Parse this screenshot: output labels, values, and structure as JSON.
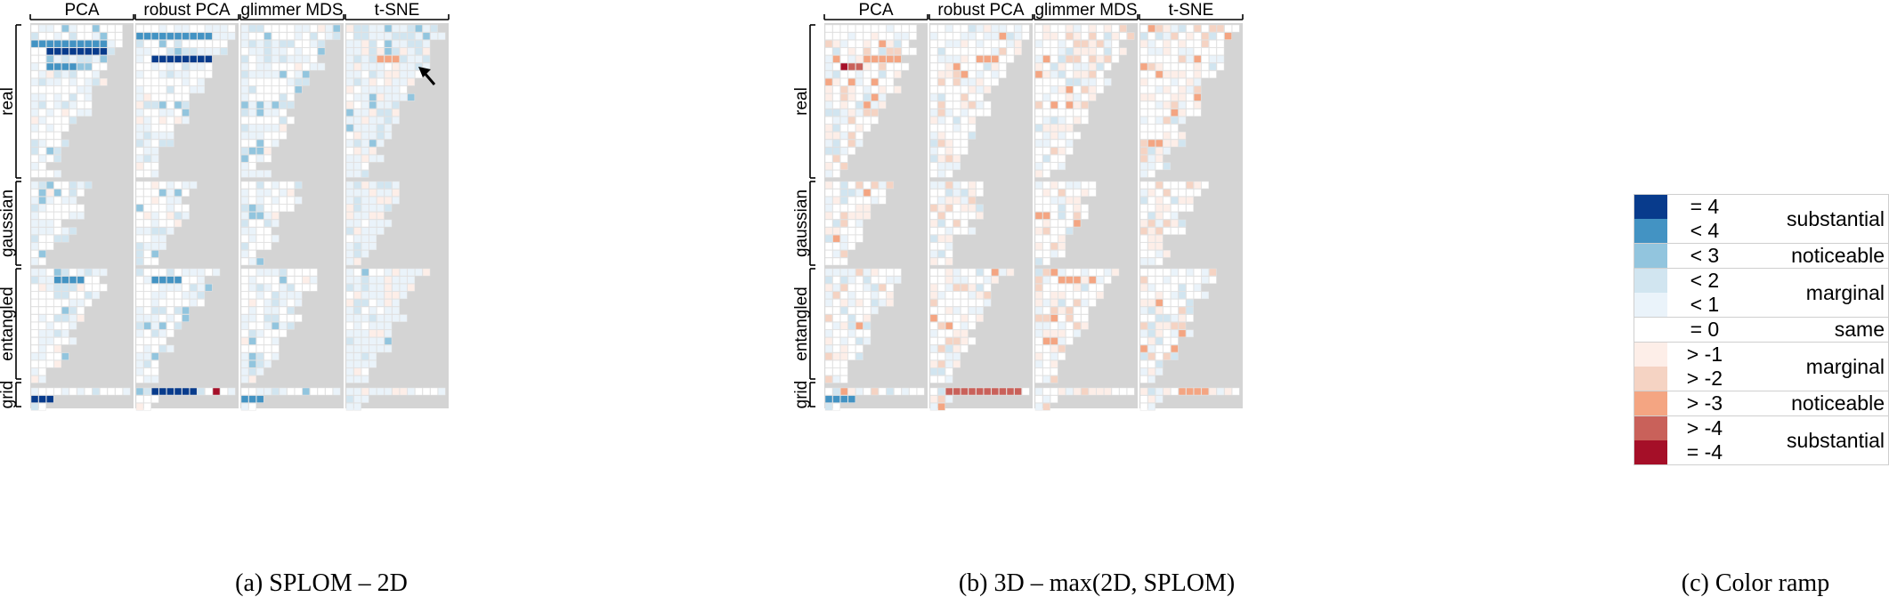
{
  "panels": [
    {
      "caption": "(a)  SPLOM – 2D",
      "columns": [
        "PCA",
        "robust PCA",
        "glimmer MDS",
        "t-SNE"
      ],
      "rows": [
        "real",
        "gaussian",
        "entangled",
        "grid"
      ],
      "arrow_annotation": true
    },
    {
      "caption": "(b)  3D – max(2D, SPLOM)",
      "columns": [
        "PCA",
        "robust PCA",
        "glimmer MDS",
        "t-SNE"
      ],
      "rows": [
        "real",
        "gaussian",
        "entangled",
        "grid"
      ],
      "arrow_annotation": false
    }
  ],
  "legend": {
    "caption": "(c)  Color ramp",
    "entries": [
      {
        "comparison": "= 4",
        "color": "#083b8c",
        "group": "substantial"
      },
      {
        "comparison": "< 4",
        "color": "#4393c3",
        "group": "substantial"
      },
      {
        "comparison": "< 3",
        "color": "#92c5de",
        "group": "noticeable"
      },
      {
        "comparison": "< 2",
        "color": "#d1e5f0",
        "group": "marginal"
      },
      {
        "comparison": "< 1",
        "color": "#eaf3fa",
        "group": "marginal"
      },
      {
        "comparison": "= 0",
        "color": "#ffffff",
        "group": "same"
      },
      {
        "comparison": "> -1",
        "color": "#fdeee8",
        "group": "marginal"
      },
      {
        "comparison": "> -2",
        "color": "#f5d3c3",
        "group": "marginal"
      },
      {
        "comparison": "> -3",
        "color": "#f4a582",
        "group": "noticeable"
      },
      {
        "comparison": "> -4",
        "color": "#c9615a",
        "group": "substantial"
      },
      {
        "comparison": "= -4",
        "color": "#a50f28",
        "group": "substantial"
      }
    ],
    "groups": [
      {
        "label": "substantial",
        "span": 2
      },
      {
        "label": "noticeable",
        "span": 1
      },
      {
        "label": "marginal",
        "span": 2
      },
      {
        "label": "same",
        "span": 1
      },
      {
        "label": "marginal",
        "span": 2
      },
      {
        "label": "noticeable",
        "span": 1
      },
      {
        "label": "substantial",
        "span": 2
      }
    ]
  },
  "chart_data": [
    {
      "type": "heatmap",
      "title": "",
      "caption": "(a)  SPLOM – 2D",
      "columns": [
        "PCA",
        "robust PCA",
        "glimmer MDS",
        "t-SNE"
      ],
      "row_groups": [
        "real",
        "gaussian",
        "entangled",
        "grid"
      ],
      "value_scale": [
        -4,
        4
      ],
      "cell_layout": "lower-triangular matrix per dataset; grey = not applicable",
      "highlights": [
        {
          "column": "PCA",
          "group": "real",
          "note": "block of = 4 cells in rows 3-4"
        },
        {
          "column": "robust PCA",
          "group": "real",
          "note": "row of = 4 cells"
        },
        {
          "column": "t-SNE",
          "group": "real",
          "note": "orange > -3 cells marked by arrow"
        },
        {
          "column": "robust PCA",
          "group": "grid",
          "note": "= 4 cells and one = -4 cell"
        }
      ],
      "color_scheme": "diverging blue (positive) to red (negative)"
    },
    {
      "type": "heatmap",
      "title": "",
      "caption": "(b)  3D – max(2D, SPLOM)",
      "columns": [
        "PCA",
        "robust PCA",
        "glimmer MDS",
        "t-SNE"
      ],
      "row_groups": [
        "real",
        "gaussian",
        "entangled",
        "grid"
      ],
      "value_scale": [
        -4,
        4
      ],
      "highlights": [
        {
          "column": "PCA",
          "group": "real",
          "note": "one = -4 cell and > -4 cells"
        },
        {
          "column": "robust PCA",
          "group": "grid",
          "note": "row of > -4 cells"
        },
        {
          "column": "PCA",
          "group": "grid",
          "note": "< 4 blue cells"
        }
      ],
      "color_scheme": "diverging blue (positive) to red (negative)"
    }
  ]
}
